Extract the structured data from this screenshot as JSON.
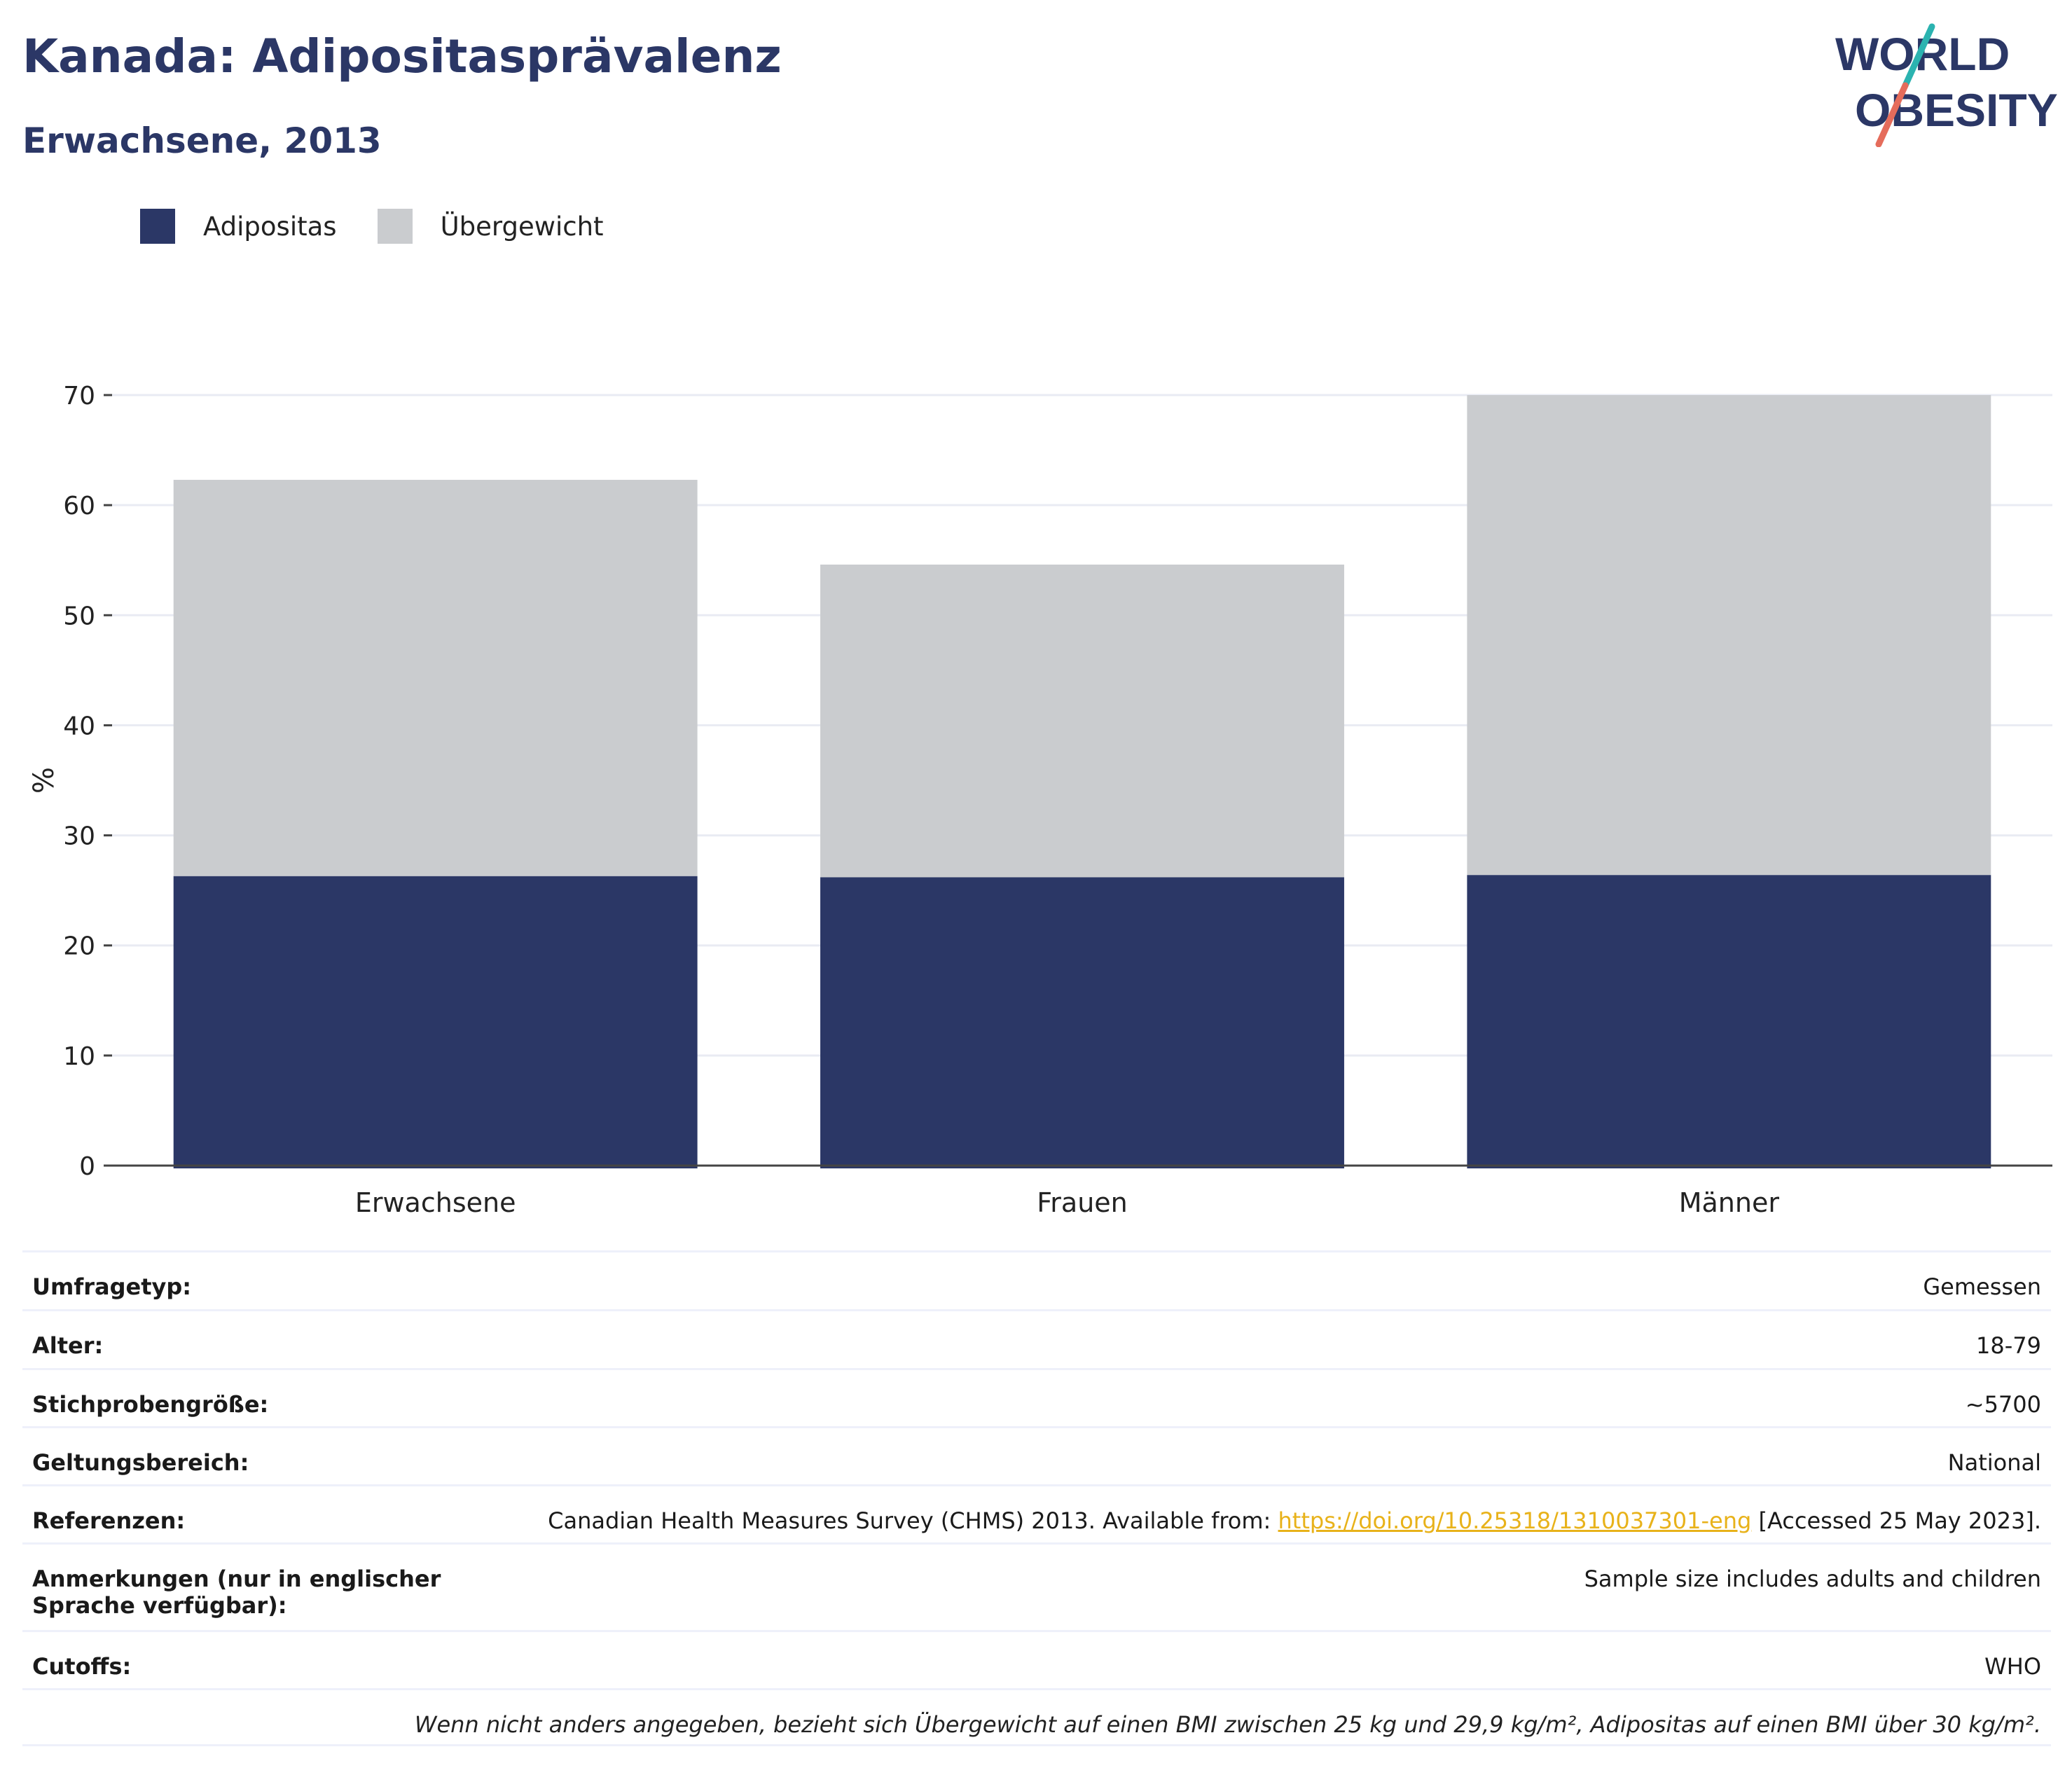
{
  "header": {
    "title": "Kanada: Adipositasprävalenz",
    "subtitle": "Erwachsene, 2013"
  },
  "logo": {
    "line1": "WORLD",
    "line2": "OBESITY"
  },
  "colors": {
    "obesity": "#2b3766",
    "overweight": "#cacccf",
    "title": "#2b3766",
    "link": "#e8b21a",
    "grid": "#e9ebf3"
  },
  "chart_data": {
    "type": "bar",
    "stacked": true,
    "categories": [
      "Erwachsene",
      "Frauen",
      "Männer"
    ],
    "series": [
      {
        "name": "Adipositas",
        "values": [
          26.3,
          26.2,
          26.4
        ]
      },
      {
        "name": "Übergewicht",
        "values": [
          36.0,
          28.4,
          43.6
        ]
      }
    ],
    "ylabel": "%",
    "xlabel": "",
    "ylim": [
      0,
      70
    ],
    "yticks": [
      "0",
      "10",
      "20",
      "30",
      "40",
      "50",
      "60",
      "70"
    ],
    "grid": true,
    "legend_position": "top-left"
  },
  "info": {
    "survey_type": {
      "label": "Umfragetyp:",
      "value": "Gemessen"
    },
    "age": {
      "label": "Alter:",
      "value": "18-79"
    },
    "sample_size": {
      "label": "Stichprobengröße:",
      "value": "~5700"
    },
    "scope": {
      "label": "Geltungsbereich:",
      "value": "National"
    },
    "references": {
      "label": "Referenzen:",
      "before": "Canadian Health Measures Survey (CHMS) 2013. Available from: ",
      "link": "https://doi.org/10.25318/1310037301-eng",
      "after": " [Accessed 25 May 2023]."
    },
    "notes": {
      "label": "Anmerkungen (nur in englischer Sprache verfügbar):",
      "value": "Sample size includes adults and children"
    },
    "cutoffs": {
      "label": "Cutoffs:",
      "value": "WHO"
    },
    "footnote": "Wenn nicht anders angegeben, bezieht sich Übergewicht auf einen BMI zwischen 25 kg und 29,9 kg/m², Adipositas auf einen BMI über 30 kg/m²."
  }
}
